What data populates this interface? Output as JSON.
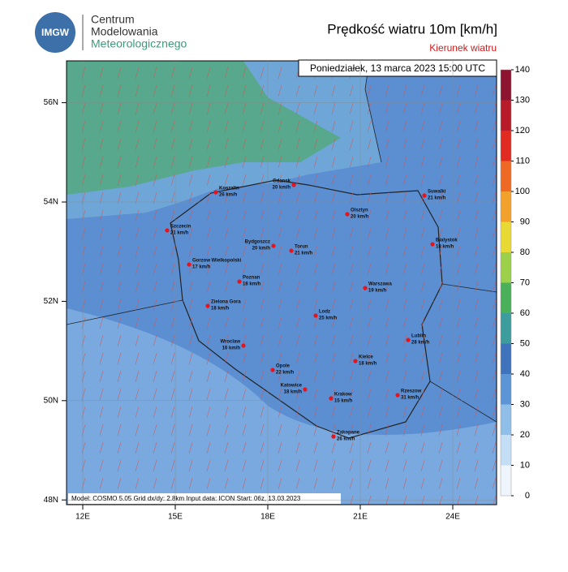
{
  "header": {
    "logo": "IMGW",
    "org": [
      "Centrum",
      "Modelowania",
      "Meteorologicznego"
    ],
    "title": "Prędkość wiatru 10m [km/h]",
    "subtitle": "Kierunek wiatru",
    "date": "Poniedziałek, 13 marca 2023 15:00 UTC"
  },
  "map": {
    "lat_ticks": [
      {
        "value": 56,
        "label": "56N"
      },
      {
        "value": 54,
        "label": "54N"
      },
      {
        "value": 52,
        "label": "52N"
      },
      {
        "value": 50,
        "label": "50N"
      },
      {
        "value": 48,
        "label": "48N"
      }
    ],
    "lon_ticks": [
      {
        "value": 12,
        "label": "12E"
      },
      {
        "value": 15,
        "label": "15E"
      },
      {
        "value": 18,
        "label": "18E"
      },
      {
        "value": 21,
        "label": "21E"
      },
      {
        "value": 24,
        "label": "24E"
      }
    ],
    "cities": [
      {
        "name": "Koszalin",
        "value": 26,
        "value_label": "26 km/h"
      },
      {
        "name": "Gdansk",
        "value": 20,
        "value_label": "20 km/h"
      },
      {
        "name": "Suwalki",
        "value": 21,
        "value_label": "21 km/h"
      },
      {
        "name": "Olsztyn",
        "value": 20,
        "value_label": "20 km/h"
      },
      {
        "name": "Szczecin",
        "value": 21,
        "value_label": "21 km/h"
      },
      {
        "name": "Bydgoszcz",
        "value": 20,
        "value_label": "20 km/h"
      },
      {
        "name": "Torun",
        "value": 21,
        "value_label": "21 km/h"
      },
      {
        "name": "Bialystok",
        "value": 18,
        "value_label": "18 km/h"
      },
      {
        "name": "Gorzow Wielkopolski",
        "value": 17,
        "value_label": "17 km/h"
      },
      {
        "name": "Poznan",
        "value": 18,
        "value_label": "18 km/h"
      },
      {
        "name": "Warszawa",
        "value": 19,
        "value_label": "19 km/h"
      },
      {
        "name": "Zielona Gora",
        "value": 18,
        "value_label": "18 km/h"
      },
      {
        "name": "Lodz",
        "value": 25,
        "value_label": "25 km/h"
      },
      {
        "name": "Lublin",
        "value": 28,
        "value_label": "28 km/h"
      },
      {
        "name": "Wroclaw",
        "value": 16,
        "value_label": "16 km/h"
      },
      {
        "name": "Kielce",
        "value": 18,
        "value_label": "18 km/h"
      },
      {
        "name": "Opole",
        "value": 22,
        "value_label": "22 km/h"
      },
      {
        "name": "Katowice",
        "value": 18,
        "value_label": "18 km/h"
      },
      {
        "name": "Krakow",
        "value": 15,
        "value_label": "15 km/h"
      },
      {
        "name": "Rzeszow",
        "value": 31,
        "value_label": "31 km/h"
      },
      {
        "name": "Zakopane",
        "value": 26,
        "value_label": "26 km/h"
      }
    ],
    "footer": "Model: COSMO 5.05  Grid dx/dy: 2.8km  Input data: ICON  Start: 06z, 13.03.2023"
  },
  "colorbar": {
    "ticks": [
      0,
      10,
      20,
      30,
      40,
      50,
      60,
      70,
      80,
      90,
      100,
      110,
      120,
      130,
      140
    ],
    "colors": [
      "#eef5fc",
      "#c4dff5",
      "#8fbfe9",
      "#5c95d6",
      "#3f74bd",
      "#3d9d9c",
      "#4bb05a",
      "#9ccf4a",
      "#e8d935",
      "#f2a22c",
      "#ee6a24",
      "#e02a22",
      "#b81c2a",
      "#8c1430",
      "#a0108c"
    ]
  }
}
